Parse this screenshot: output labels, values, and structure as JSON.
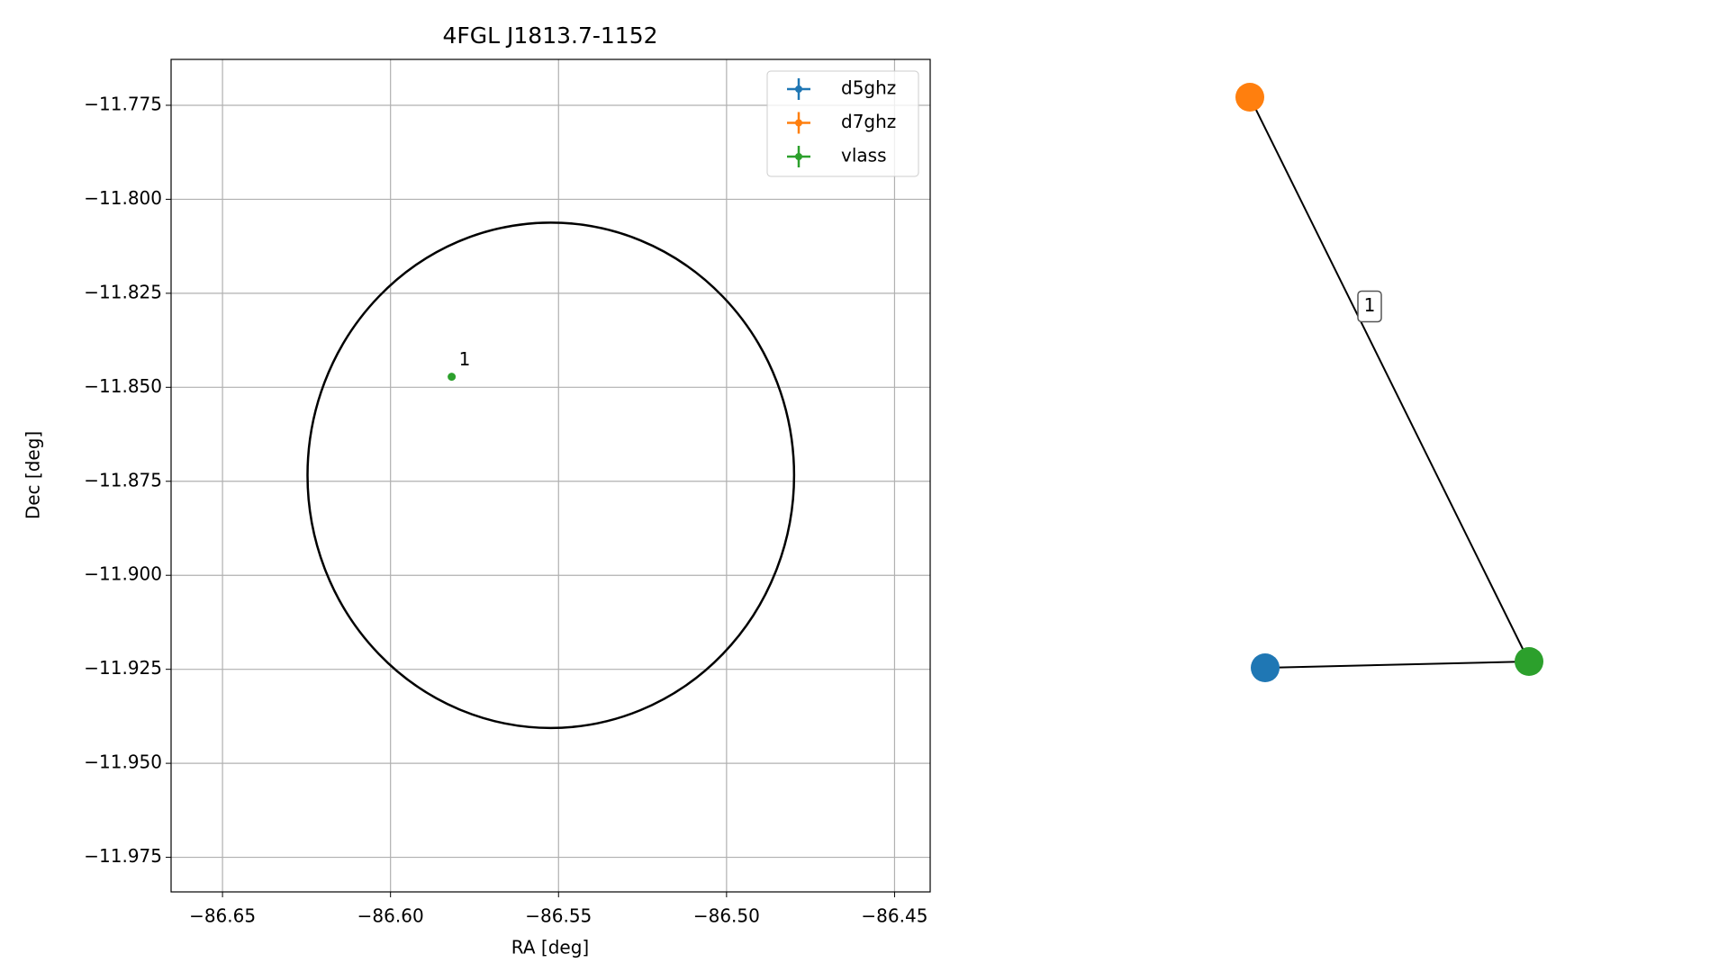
{
  "chart_data": {
    "type": "scatter",
    "title": "4FGL J1813.7-1152",
    "xlabel": "RA [deg]",
    "ylabel": "Dec [deg]",
    "xlim": [
      -86.6653,
      -86.4394
    ],
    "ylim": [
      -11.9842,
      -11.7628
    ],
    "xticks": [
      {
        "value": -86.65,
        "label": "−86.65"
      },
      {
        "value": -86.6,
        "label": "−86.60"
      },
      {
        "value": -86.55,
        "label": "−86.55"
      },
      {
        "value": -86.5,
        "label": "−86.50"
      },
      {
        "value": -86.45,
        "label": "−86.45"
      }
    ],
    "yticks": [
      {
        "value": -11.775,
        "label": "−11.775"
      },
      {
        "value": -11.8,
        "label": "−11.800"
      },
      {
        "value": -11.825,
        "label": "−11.825"
      },
      {
        "value": -11.85,
        "label": "−11.850"
      },
      {
        "value": -11.875,
        "label": "−11.875"
      },
      {
        "value": -11.9,
        "label": "−11.900"
      },
      {
        "value": -11.925,
        "label": "−11.925"
      },
      {
        "value": -11.95,
        "label": "−11.950"
      },
      {
        "value": -11.975,
        "label": "−11.975"
      }
    ],
    "grid": true,
    "legend": "upper right",
    "series": [
      {
        "name": "d5ghz",
        "color": "#1f77b4",
        "x": [],
        "values": []
      },
      {
        "name": "d7ghz",
        "color": "#ff7f0e",
        "x": [],
        "values": []
      },
      {
        "name": "vlass",
        "color": "#2ca02c",
        "x": [
          -86.5818
        ],
        "values": [
          -11.8472
        ],
        "point_labels": [
          "1"
        ]
      }
    ],
    "ellipse": {
      "x": -86.5523,
      "y": -11.8734,
      "width": 0.1448,
      "height": 0.1344,
      "color": "#000000"
    }
  },
  "graph": {
    "nodes": [
      {
        "color": "#ff7f0e"
      },
      {
        "color": "#2ca02c"
      },
      {
        "color": "#1f77b4"
      }
    ],
    "edges": [
      {
        "source": 0,
        "target": 1,
        "label": "1"
      },
      {
        "source": 2,
        "target": 1
      }
    ]
  }
}
